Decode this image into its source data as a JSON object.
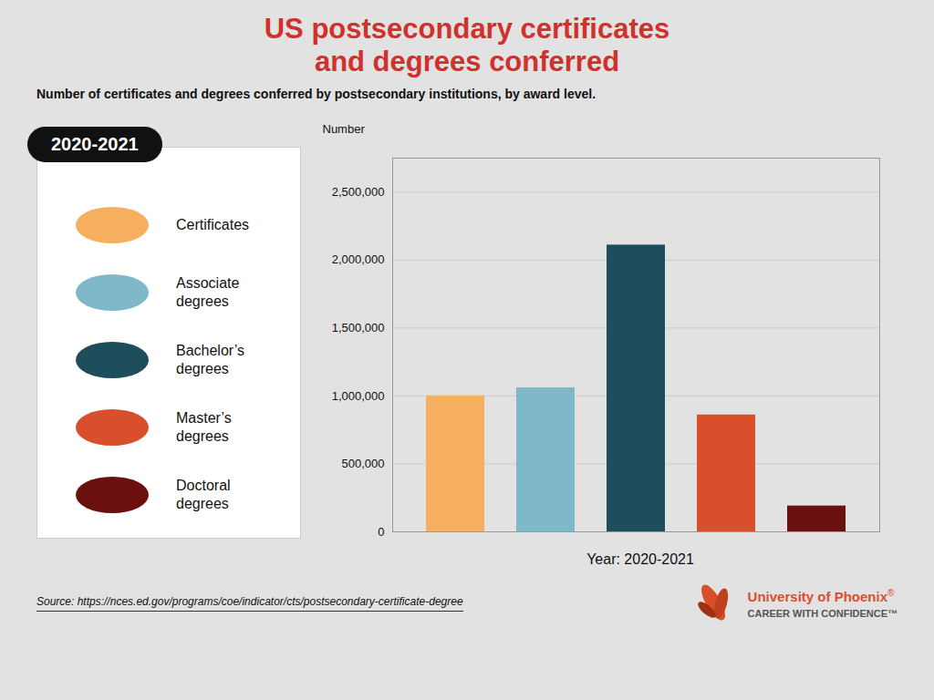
{
  "chart_data": {
    "type": "bar",
    "title": "US postsecondary certificates\nand degrees conferred",
    "subtitle": "Number of certificates and degrees conferred by postsecondary institutions, by award level.",
    "categories": [
      "Certificates",
      "Associate\ndegrees",
      "Bachelor’s\ndegrees",
      "Master’s\ndegrees",
      "Doctoral\ndegrees"
    ],
    "values": [
      1000000,
      1060000,
      2110000,
      860000,
      190000
    ],
    "colors": [
      "#f5af5f",
      "#7eb8c9",
      "#1e4d5c",
      "#d94f2b",
      "#6b0f0f"
    ],
    "xlabel": "Year: 2020-2021",
    "ylabel": "Number",
    "ylim": [
      0,
      2750000
    ],
    "yticks": [
      0,
      {
        "value": 500000,
        "label": "500,000"
      },
      {
        "value": 1000000,
        "label": "1,000,000"
      },
      {
        "value": 1500000,
        "label": "1,500,000"
      },
      {
        "value": 2000000,
        "label": "2,000,000"
      },
      {
        "value": 2500000,
        "label": "2,500,000"
      }
    ],
    "grid": true,
    "legend": "left",
    "tick_labels": "y",
    "annotations": [
      "2020-2021",
      "Source: https://nces.ed.gov/programs/coe/indicator/cts/postsecondary-certificate-degree",
      "University of Phoenix",
      "®",
      "CAREER WITH CONFIDENCE™"
    ]
  }
}
